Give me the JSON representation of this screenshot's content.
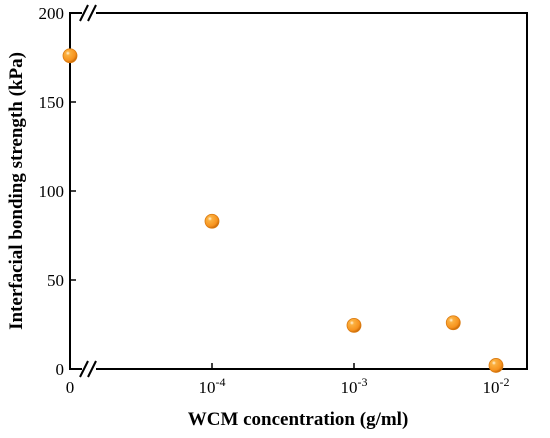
{
  "chart_data": {
    "type": "scatter",
    "xlabel": "WCM concentration (g/ml)",
    "ylabel": "Interfacial bonding strength (kPa)",
    "x_scale": "broken-log",
    "x_ticks": [
      {
        "value": 0,
        "base": "0",
        "exp": ""
      },
      {
        "value": 0.0001,
        "base": "10",
        "exp": "-4"
      },
      {
        "value": 0.001,
        "base": "10",
        "exp": "-3"
      },
      {
        "value": 0.01,
        "base": "10",
        "exp": "-2"
      }
    ],
    "y_ticks": [
      0,
      50,
      100,
      150,
      200
    ],
    "ylim": [
      0,
      200
    ],
    "grid": false,
    "marker_color": "#f7931e",
    "series": [
      {
        "x": [
          0,
          0.0001,
          0.001,
          0.005,
          0.01
        ],
        "y": [
          176,
          83,
          24.5,
          26,
          2
        ]
      }
    ]
  }
}
